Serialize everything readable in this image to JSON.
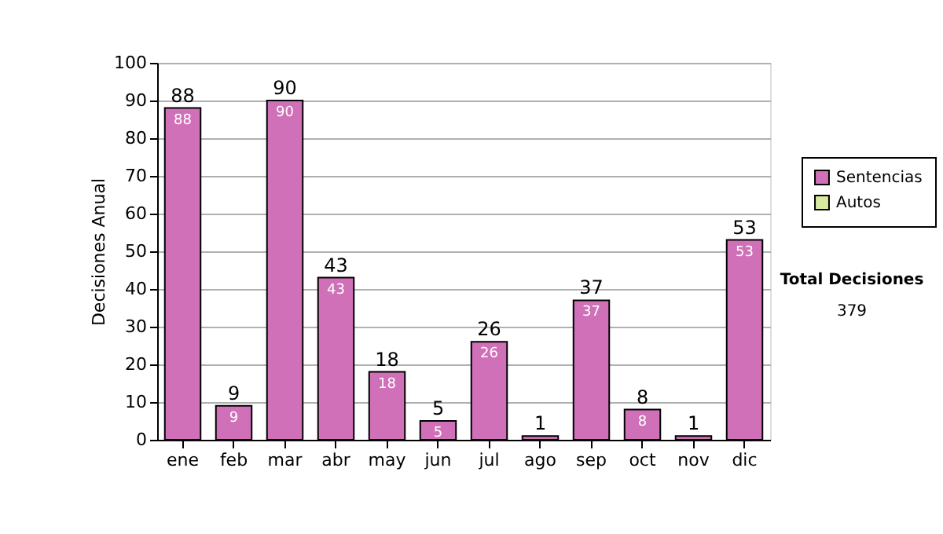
{
  "chart_data": {
    "type": "bar",
    "ylabel": "Decisiones Anual",
    "categories": [
      "ene",
      "feb",
      "mar",
      "abr",
      "may",
      "jun",
      "jul",
      "ago",
      "sep",
      "oct",
      "nov",
      "dic"
    ],
    "series": [
      {
        "name": "Sentencias",
        "color": "#d070b8",
        "values": [
          88,
          9,
          90,
          43,
          18,
          5,
          26,
          1,
          37,
          8,
          1,
          53
        ],
        "value_labels": [
          "88",
          "9",
          "90",
          "43",
          "18",
          "5",
          "26",
          null,
          "37",
          "8",
          null,
          "53"
        ]
      },
      {
        "name": "Autos",
        "color": "#d8eaa0",
        "values": [
          null,
          null,
          null,
          null,
          null,
          null,
          null,
          null,
          null,
          null,
          null,
          null
        ]
      }
    ],
    "totals": [
      "88",
      "9",
      "90",
      "43",
      "18",
      "5",
      "26",
      "1",
      "37",
      "8",
      "1",
      "53"
    ],
    "ylim": [
      0,
      100
    ],
    "yticks": [
      0,
      10,
      20,
      30,
      40,
      50,
      60,
      70,
      80,
      90,
      100
    ],
    "grid": "y",
    "legend": "right",
    "annotations": [
      "Total Decisiones",
      "379"
    ]
  }
}
